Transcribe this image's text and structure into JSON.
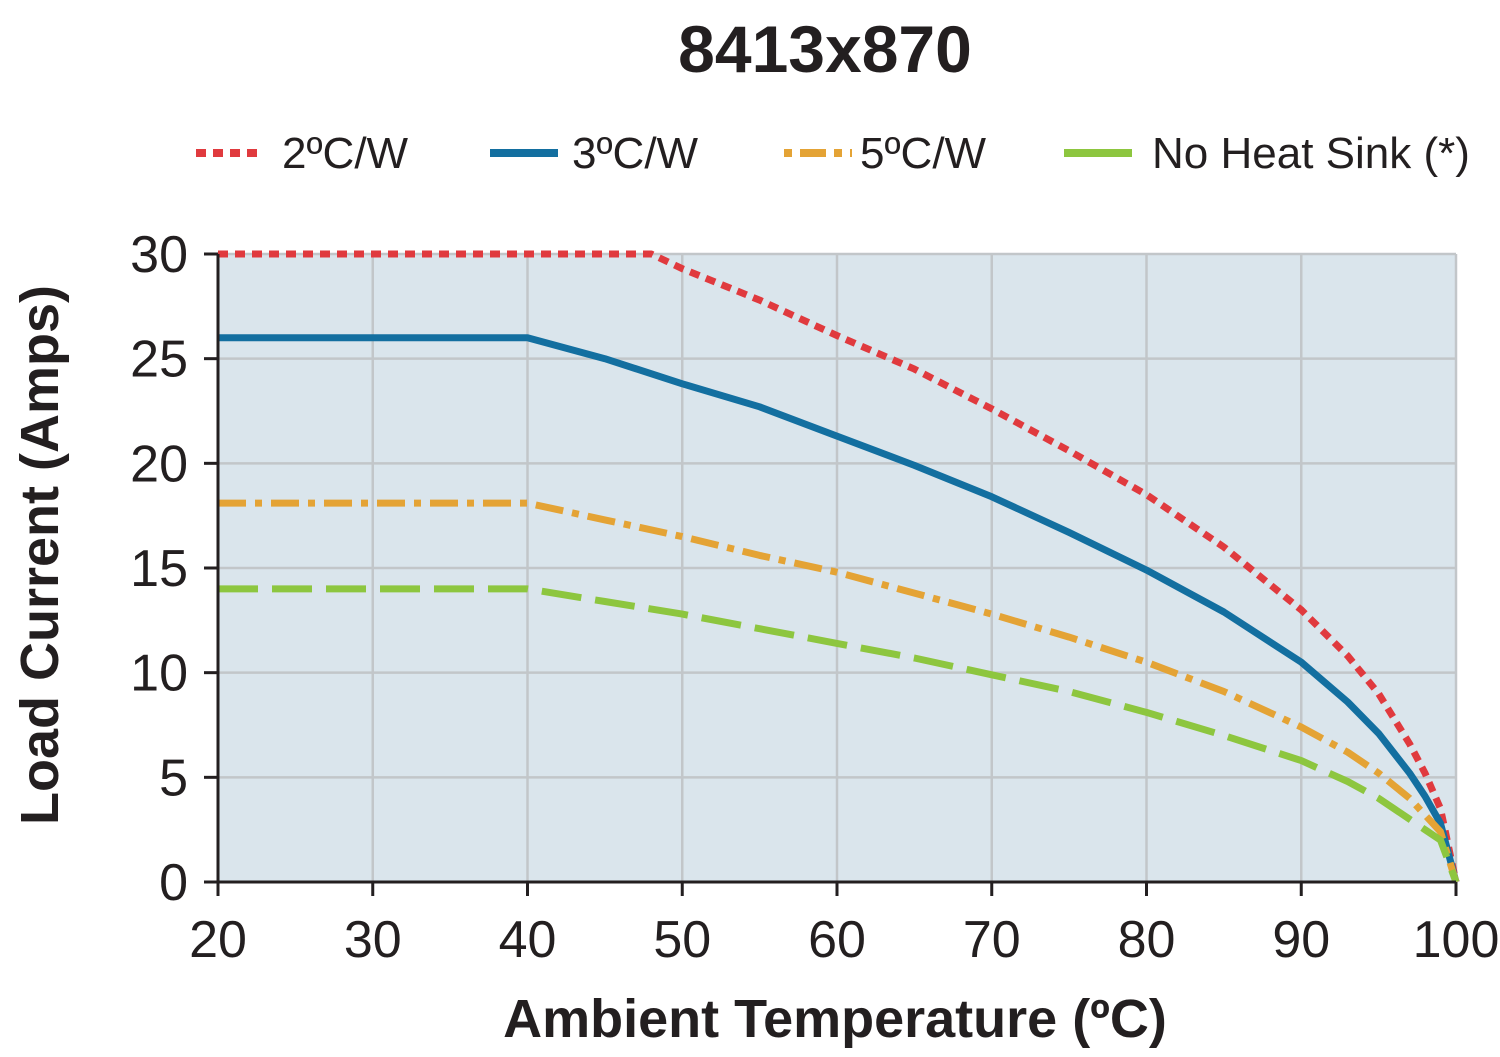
{
  "chart_data": {
    "type": "line",
    "title": "8413x870",
    "xlabel": "Ambient Temperature (ºC)",
    "ylabel": "Load Current (Amps)",
    "xlim": [
      20,
      100
    ],
    "ylim": [
      0,
      30
    ],
    "x_ticks": [
      "20",
      "30",
      "40",
      "50",
      "60",
      "70",
      "80",
      "90",
      "100"
    ],
    "y_ticks": [
      "0",
      "5",
      "10",
      "15",
      "20",
      "25",
      "30"
    ],
    "grid": true,
    "legend_position": "top",
    "plot_background": "#dae5ec",
    "series": [
      {
        "name": "2ºC/W",
        "color": "#e03a3e",
        "style": "dotted",
        "x": [
          20,
          40,
          48,
          50,
          55,
          60,
          65,
          70,
          75,
          80,
          85,
          90,
          93,
          95,
          97,
          98,
          99,
          100
        ],
        "y": [
          30,
          30,
          30,
          29.3,
          27.8,
          26.1,
          24.5,
          22.6,
          20.6,
          18.5,
          16,
          13,
          10.8,
          9,
          6.6,
          5.2,
          3.5,
          0
        ]
      },
      {
        "name": "3ºC/W",
        "color": "#136fa0",
        "style": "solid",
        "x": [
          20,
          40,
          45,
          50,
          55,
          60,
          65,
          70,
          75,
          80,
          85,
          90,
          93,
          95,
          97,
          98,
          99,
          100
        ],
        "y": [
          26,
          26,
          25,
          23.8,
          22.7,
          21.3,
          19.9,
          18.4,
          16.7,
          14.9,
          12.9,
          10.5,
          8.6,
          7.1,
          5.2,
          4.1,
          2.8,
          0
        ]
      },
      {
        "name": "5ºC/W",
        "color": "#e4a335",
        "style": "dashdot",
        "x": [
          20,
          40,
          45,
          50,
          55,
          60,
          65,
          70,
          75,
          80,
          85,
          90,
          93,
          95,
          97,
          98,
          99,
          100
        ],
        "y": [
          18.1,
          18.1,
          17.3,
          16.5,
          15.6,
          14.8,
          13.8,
          12.8,
          11.7,
          10.5,
          9.1,
          7.4,
          6.2,
          5.2,
          4,
          3.2,
          2.4,
          0
        ]
      },
      {
        "name": "No Heat Sink (*)",
        "color": "#8dc63f",
        "style": "dashed",
        "x": [
          20,
          40,
          45,
          50,
          55,
          60,
          65,
          70,
          75,
          80,
          85,
          90,
          93,
          95,
          97,
          98,
          99,
          100
        ],
        "y": [
          14,
          14,
          13.4,
          12.8,
          12.1,
          11.4,
          10.7,
          9.9,
          9.1,
          8.1,
          7,
          5.8,
          4.8,
          4,
          3,
          2.5,
          2,
          0
        ]
      }
    ]
  }
}
